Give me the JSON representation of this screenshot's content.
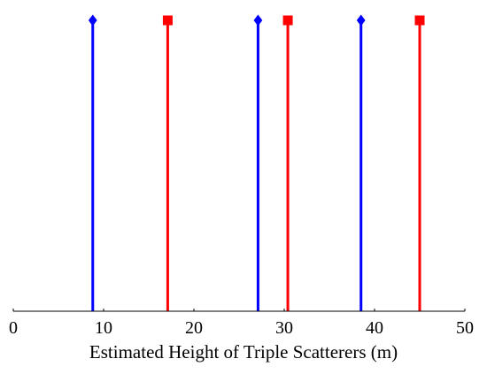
{
  "chart_data": {
    "type": "stem",
    "title": "",
    "xlabel": "Estimated Height of Triple Scatterers (m)",
    "ylabel": "",
    "xlim": [
      0,
      50
    ],
    "ylim": [
      0,
      1
    ],
    "grid": false,
    "xticks": [
      0,
      10,
      20,
      30,
      40,
      50
    ],
    "xtick_labels": [
      "0",
      "10",
      "20",
      "30",
      "40",
      "50"
    ],
    "series": [
      {
        "color": "#0000ff",
        "marker": "diamond",
        "x": [
          8.8,
          27.1,
          38.5
        ],
        "y": [
          1,
          1,
          1
        ]
      },
      {
        "color": "#ff0000",
        "marker": "square",
        "x": [
          17.1,
          30.4,
          45.0
        ],
        "y": [
          1,
          1,
          1
        ]
      }
    ]
  }
}
